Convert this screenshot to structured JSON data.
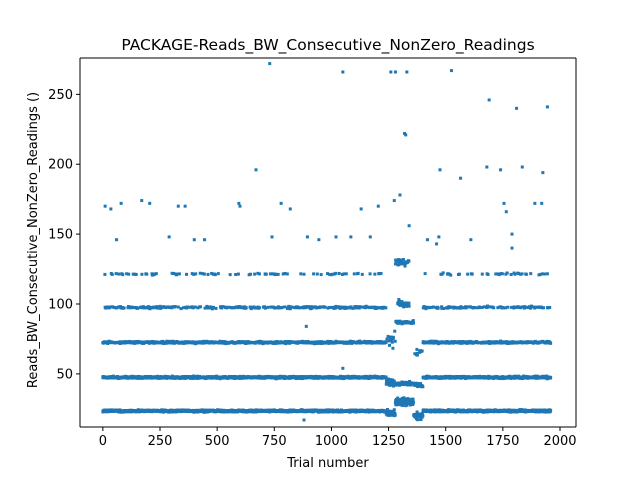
{
  "chart_data": {
    "type": "scatter",
    "title": "PACKAGE-Reads_BW_Consecutive_NonZero_Readings",
    "xlabel": "Trial number",
    "ylabel": "Reads_BW_Consecutive_NonZero_Readings ()",
    "xlim": [
      -100,
      2070
    ],
    "ylim": [
      12,
      276
    ],
    "xticks": [
      0,
      250,
      500,
      750,
      1000,
      1250,
      1500,
      1750,
      2000
    ],
    "yticks": [
      50,
      100,
      150,
      200,
      250
    ],
    "grid": false,
    "legend": "none",
    "marker_color": "#1f77b4",
    "n_trials": 1960,
    "series": [
      {
        "description": "Each trial is one point; values cluster in bands near 23, 47, 72, 97, 121 and 147, with sparse outliers up to ~272 and a disturbed region around trials 1240-1400.",
        "band_levels": [
          23.5,
          47.5,
          72.5,
          97.5,
          121.5,
          147.5
        ],
        "outliers": [
          [
            10,
            170
          ],
          [
            35,
            168
          ],
          [
            60,
            146
          ],
          [
            80,
            172
          ],
          [
            170,
            174
          ],
          [
            205,
            172
          ],
          [
            290,
            148
          ],
          [
            330,
            170
          ],
          [
            360,
            170
          ],
          [
            400,
            146
          ],
          [
            445,
            146
          ],
          [
            595,
            172
          ],
          [
            600,
            170
          ],
          [
            670,
            196
          ],
          [
            730,
            272
          ],
          [
            740,
            148
          ],
          [
            780,
            172
          ],
          [
            820,
            168
          ],
          [
            895,
            148
          ],
          [
            945,
            146
          ],
          [
            1020,
            148
          ],
          [
            1050,
            266
          ],
          [
            1085,
            148
          ],
          [
            1130,
            168
          ],
          [
            1170,
            148
          ],
          [
            1205,
            170
          ],
          [
            1275,
            174
          ],
          [
            1300,
            178
          ],
          [
            1340,
            156
          ],
          [
            1420,
            146
          ],
          [
            1475,
            196
          ],
          [
            1525,
            267
          ],
          [
            1565,
            190
          ],
          [
            1610,
            146
          ],
          [
            1680,
            198
          ],
          [
            1690,
            246
          ],
          [
            1740,
            196
          ],
          [
            1755,
            172
          ],
          [
            1765,
            166
          ],
          [
            1790,
            140
          ],
          [
            1810,
            240
          ],
          [
            1835,
            198
          ],
          [
            1890,
            172
          ],
          [
            1925,
            194
          ],
          [
            1945,
            241
          ],
          [
            1920,
            172
          ],
          [
            1260,
            266
          ],
          [
            1280,
            266
          ],
          [
            1330,
            266
          ],
          [
            1320,
            222
          ],
          [
            1325,
            221
          ],
          [
            1460,
            143
          ],
          [
            1470,
            148
          ],
          [
            1790,
            150
          ],
          [
            1050,
            54
          ],
          [
            880,
            17
          ],
          [
            890,
            84
          ]
        ]
      }
    ]
  }
}
